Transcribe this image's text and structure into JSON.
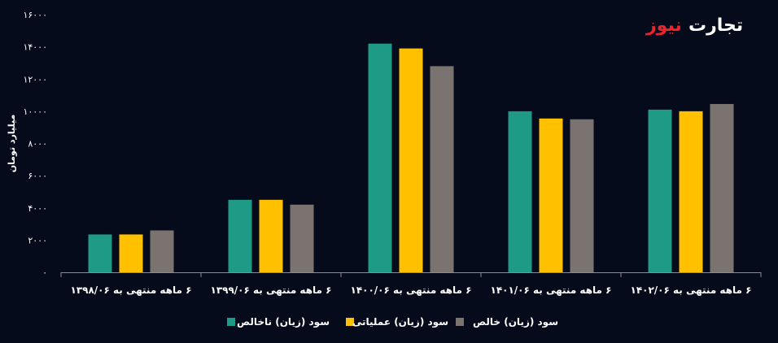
{
  "logo": {
    "part_red": "نیوز",
    "part_white": "تجارت"
  },
  "chart_data": {
    "type": "bar",
    "title": "",
    "xlabel": "",
    "ylabel": "میلیارد تومان",
    "ylim": [
      0,
      16000
    ],
    "yticks": [
      0,
      2000,
      4000,
      6000,
      8000,
      10000,
      12000,
      14000,
      16000
    ],
    "ytick_labels": [
      "۰",
      "۲۰۰۰",
      "۴۰۰۰",
      "۶۰۰۰",
      "۸۰۰۰",
      "۱۰۰۰۰",
      "۱۲۰۰۰",
      "۱۴۰۰۰",
      "۱۶۰۰۰"
    ],
    "grid": false,
    "legend_position": "bottom",
    "categories": [
      "۶ ماهه منتهی به ۱۳۹۸/۰۶",
      "۶ ماهه منتهی به ۱۳۹۹/۰۶",
      "۶ ماهه منتهی به ۱۴۰۰/۰۶",
      "۶ ماهه منتهی به ۱۴۰۱/۰۶",
      "۶ ماهه منتهی به ۱۴۰۲/۰۶"
    ],
    "series": [
      {
        "name": "سود (زیان) ناخالص",
        "color": "#1f9a86",
        "values": [
          2350,
          4500,
          14200,
          10000,
          10100
        ]
      },
      {
        "name": "سود (زیان) عملیاتی",
        "color": "#ffc000",
        "values": [
          2350,
          4500,
          13900,
          9550,
          10000
        ]
      },
      {
        "name": "سود (زیان) خالص",
        "color": "#7b7370",
        "values": [
          2600,
          4200,
          12800,
          9500,
          10450
        ]
      }
    ]
  }
}
